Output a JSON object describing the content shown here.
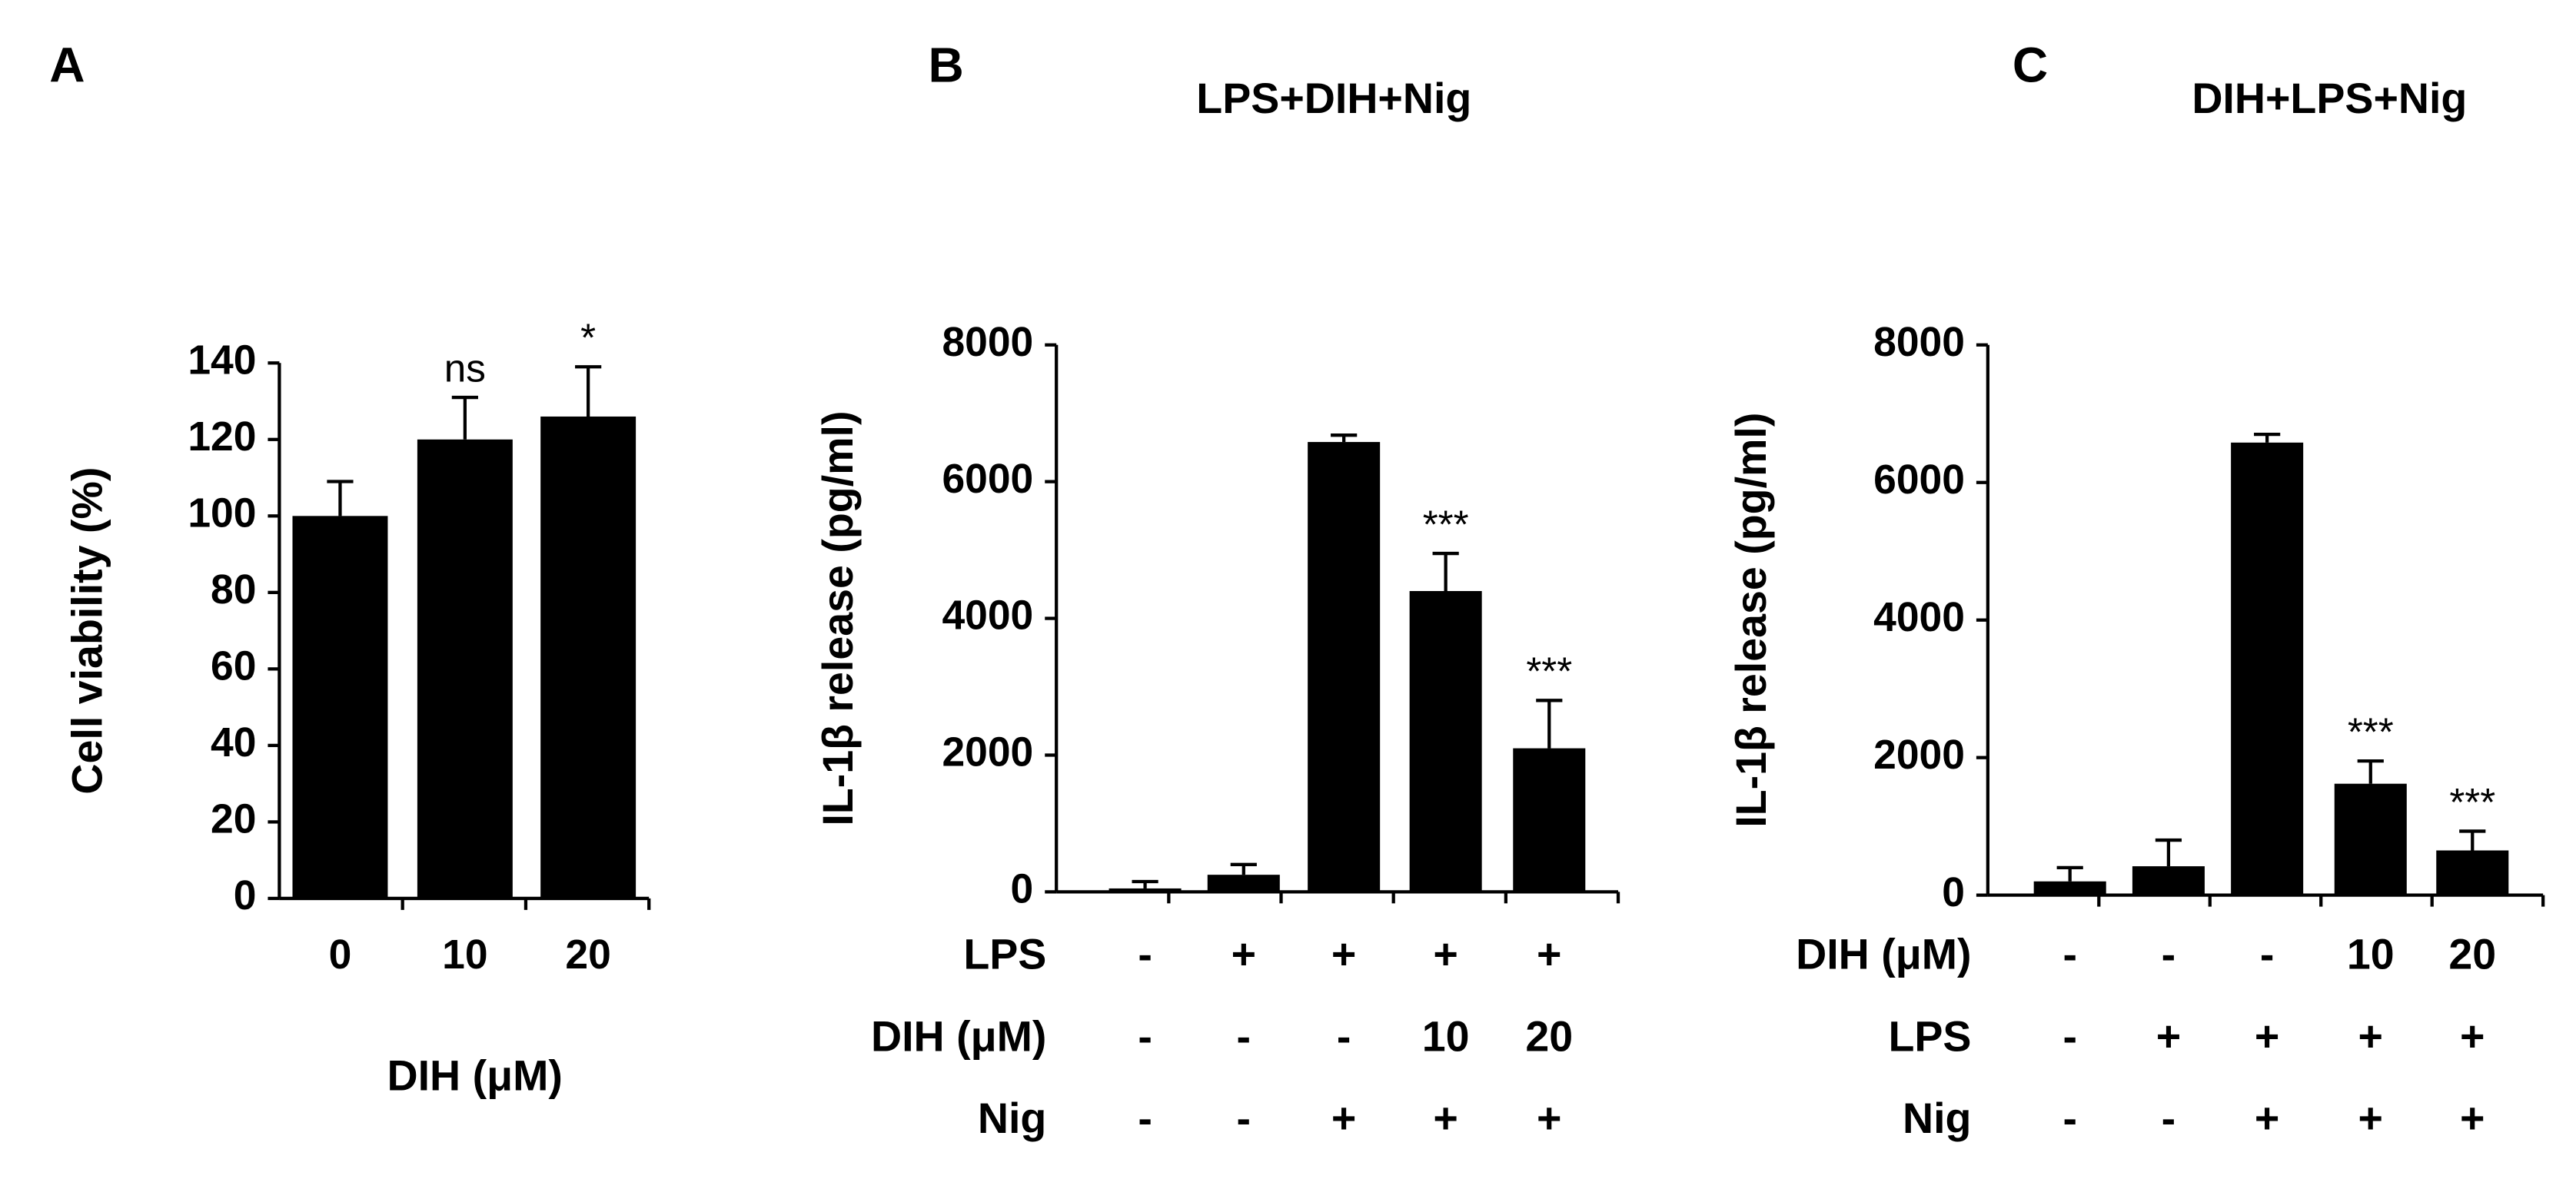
{
  "chart_data": [
    {
      "type": "bar",
      "panel": "A",
      "color": "#000000",
      "categories": [
        "0",
        "10",
        "20"
      ],
      "values": [
        100,
        120,
        126
      ],
      "errors": [
        9,
        11,
        13
      ],
      "annotations": [
        null,
        "ns",
        "*"
      ],
      "ylabel": "Cell viability (%)",
      "xlabel": "DIH (μM)",
      "ylim": [
        0,
        140
      ],
      "yticks": [
        0,
        20,
        40,
        60,
        80,
        100,
        120,
        140
      ]
    },
    {
      "type": "bar",
      "panel": "B",
      "title": "LPS+DIH+Nig",
      "color": "#000000",
      "values": [
        50,
        250,
        6580,
        4400,
        2100
      ],
      "errors": [
        100,
        150,
        100,
        550,
        700
      ],
      "annotations": [
        null,
        null,
        null,
        "***",
        "***"
      ],
      "treatments": [
        {
          "label": "LPS",
          "values": [
            "-",
            "+",
            "+",
            "+",
            "+"
          ]
        },
        {
          "label": "DIH (μM)",
          "values": [
            "-",
            "-",
            "-",
            "10",
            "20"
          ]
        },
        {
          "label": "Nig",
          "values": [
            "-",
            "-",
            "+",
            "+",
            "+"
          ]
        }
      ],
      "ylabel": "IL-1β release (pg/ml)",
      "ylim": [
        0,
        8000
      ],
      "yticks": [
        0,
        2000,
        4000,
        6000,
        8000
      ]
    },
    {
      "type": "bar",
      "panel": "C",
      "title": "DIH+LPS+Nig",
      "color": "#000000",
      "values": [
        200,
        420,
        6580,
        1620,
        650
      ],
      "errors": [
        200,
        380,
        120,
        330,
        280
      ],
      "annotations": [
        null,
        null,
        null,
        "***",
        "***"
      ],
      "treatments": [
        {
          "label": "DIH (μM)",
          "values": [
            "-",
            "-",
            "-",
            "10",
            "20"
          ]
        },
        {
          "label": "LPS",
          "values": [
            "-",
            "+",
            "+",
            "+",
            "+"
          ]
        },
        {
          "label": "Nig",
          "values": [
            "-",
            "-",
            "+",
            "+",
            "+"
          ]
        }
      ],
      "ylabel": "IL-1β release (pg/ml)",
      "ylim": [
        0,
        8000
      ],
      "yticks": [
        0,
        2000,
        4000,
        6000,
        8000
      ]
    }
  ]
}
